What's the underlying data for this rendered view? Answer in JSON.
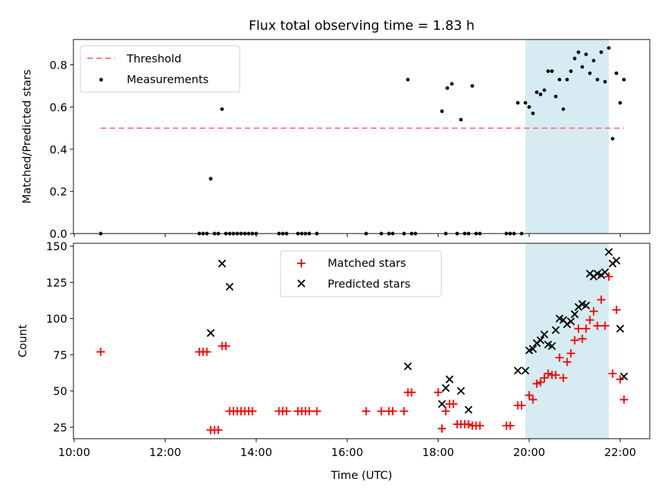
{
  "chart_data": [
    {
      "type": "scatter",
      "title": "Flux total observing time = 1.83 h",
      "xlabel": "",
      "ylabel": "Matched/Predicted stars",
      "xlim": [
        "09:59",
        "22:39"
      ],
      "ylim": [
        0,
        0.92
      ],
      "yticks": [
        "0.0",
        "0.2",
        "0.4",
        "0.6",
        "0.8"
      ],
      "legend_position": "top-left",
      "highlight_span": [
        "19:55",
        "21:45"
      ],
      "highlight_color": "#add8e6",
      "threshold": {
        "name": "Threshold",
        "y": 0.5,
        "x_range": [
          "10:35",
          "22:05"
        ],
        "color": "#ff7b7b",
        "style": "dashed"
      },
      "series": [
        {
          "name": "Measurements",
          "marker": "dot",
          "color": "#000000",
          "points": [
            [
              "10:35",
              0.0
            ],
            [
              "12:45",
              0.0
            ],
            [
              "12:50",
              0.0
            ],
            [
              "12:55",
              0.0
            ],
            [
              "13:00",
              0.26
            ],
            [
              "13:05",
              0.0
            ],
            [
              "13:10",
              0.0
            ],
            [
              "13:15",
              0.59
            ],
            [
              "13:20",
              0.0
            ],
            [
              "13:25",
              0.0
            ],
            [
              "13:30",
              0.0
            ],
            [
              "13:35",
              0.0
            ],
            [
              "13:40",
              0.0
            ],
            [
              "13:45",
              0.0
            ],
            [
              "13:50",
              0.0
            ],
            [
              "13:55",
              0.0
            ],
            [
              "14:00",
              0.0
            ],
            [
              "14:30",
              0.0
            ],
            [
              "14:35",
              0.0
            ],
            [
              "14:40",
              0.0
            ],
            [
              "14:55",
              0.0
            ],
            [
              "15:00",
              0.0
            ],
            [
              "15:05",
              0.0
            ],
            [
              "15:10",
              0.0
            ],
            [
              "15:20",
              0.0
            ],
            [
              "16:25",
              0.0
            ],
            [
              "16:45",
              0.0
            ],
            [
              "16:55",
              0.0
            ],
            [
              "17:00",
              0.0
            ],
            [
              "17:15",
              0.0
            ],
            [
              "17:20",
              0.73
            ],
            [
              "17:25",
              0.0
            ],
            [
              "17:30",
              0.0
            ],
            [
              "18:05",
              0.58
            ],
            [
              "18:10",
              0.0
            ],
            [
              "18:12",
              0.69
            ],
            [
              "18:18",
              0.71
            ],
            [
              "18:25",
              0.0
            ],
            [
              "18:30",
              0.54
            ],
            [
              "18:35",
              0.0
            ],
            [
              "18:40",
              0.0
            ],
            [
              "18:45",
              0.7
            ],
            [
              "18:50",
              0.0
            ],
            [
              "18:55",
              0.0
            ],
            [
              "19:30",
              0.0
            ],
            [
              "19:35",
              0.0
            ],
            [
              "19:40",
              0.0
            ],
            [
              "19:45",
              0.62
            ],
            [
              "19:50",
              0.0
            ],
            [
              "19:55",
              0.62
            ],
            [
              "20:00",
              0.6
            ],
            [
              "20:05",
              0.57
            ],
            [
              "20:10",
              0.67
            ],
            [
              "20:15",
              0.66
            ],
            [
              "20:20",
              0.68
            ],
            [
              "20:25",
              0.77
            ],
            [
              "20:30",
              0.77
            ],
            [
              "20:35",
              0.65
            ],
            [
              "20:40",
              0.73
            ],
            [
              "20:45",
              0.59
            ],
            [
              "20:50",
              0.73
            ],
            [
              "20:55",
              0.77
            ],
            [
              "21:00",
              0.83
            ],
            [
              "21:05",
              0.86
            ],
            [
              "21:10",
              0.79
            ],
            [
              "21:15",
              0.85
            ],
            [
              "21:20",
              0.76
            ],
            [
              "21:25",
              0.82
            ],
            [
              "21:30",
              0.73
            ],
            [
              "21:35",
              0.86
            ],
            [
              "21:40",
              0.72
            ],
            [
              "21:45",
              0.88
            ],
            [
              "21:50",
              0.45
            ],
            [
              "21:55",
              0.76
            ],
            [
              "22:00",
              0.62
            ],
            [
              "22:05",
              0.73
            ]
          ]
        }
      ]
    },
    {
      "type": "scatter",
      "title": "",
      "xlabel": "Time (UTC)",
      "ylabel": "Count",
      "xlim": [
        "09:59",
        "22:39"
      ],
      "ylim": [
        17,
        152
      ],
      "xticks": [
        "10:00",
        "12:00",
        "14:00",
        "16:00",
        "18:00",
        "20:00",
        "22:00"
      ],
      "yticks": [
        "25",
        "50",
        "75",
        "100",
        "125",
        "150"
      ],
      "legend_position": "upper-center",
      "highlight_span": [
        "19:55",
        "21:45"
      ],
      "highlight_color": "#add8e6",
      "series": [
        {
          "name": "Matched stars",
          "marker": "plus",
          "color": "#ff0000",
          "points": [
            [
              "10:35",
              77
            ],
            [
              "12:45",
              77
            ],
            [
              "12:50",
              77
            ],
            [
              "12:55",
              77
            ],
            [
              "13:00",
              23
            ],
            [
              "13:05",
              23
            ],
            [
              "13:10",
              23
            ],
            [
              "13:15",
              81
            ],
            [
              "13:20",
              81
            ],
            [
              "13:25",
              36
            ],
            [
              "13:30",
              36
            ],
            [
              "13:35",
              36
            ],
            [
              "13:40",
              36
            ],
            [
              "13:45",
              36
            ],
            [
              "13:50",
              36
            ],
            [
              "13:55",
              36
            ],
            [
              "14:30",
              36
            ],
            [
              "14:35",
              36
            ],
            [
              "14:40",
              36
            ],
            [
              "14:55",
              36
            ],
            [
              "15:00",
              36
            ],
            [
              "15:05",
              36
            ],
            [
              "15:10",
              36
            ],
            [
              "15:20",
              36
            ],
            [
              "16:25",
              36
            ],
            [
              "16:45",
              36
            ],
            [
              "16:55",
              36
            ],
            [
              "17:00",
              36
            ],
            [
              "17:15",
              36
            ],
            [
              "17:20",
              49
            ],
            [
              "17:25",
              49
            ],
            [
              "18:00",
              49
            ],
            [
              "18:05",
              24
            ],
            [
              "18:10",
              36
            ],
            [
              "18:15",
              41
            ],
            [
              "18:20",
              41
            ],
            [
              "18:25",
              27
            ],
            [
              "18:30",
              27
            ],
            [
              "18:35",
              27
            ],
            [
              "18:40",
              27
            ],
            [
              "18:45",
              26
            ],
            [
              "18:50",
              26
            ],
            [
              "18:55",
              26
            ],
            [
              "19:30",
              26
            ],
            [
              "19:35",
              26
            ],
            [
              "19:45",
              40
            ],
            [
              "19:50",
              40
            ],
            [
              "20:00",
              47
            ],
            [
              "20:05",
              44
            ],
            [
              "20:10",
              55
            ],
            [
              "20:15",
              56
            ],
            [
              "20:20",
              59
            ],
            [
              "20:25",
              62
            ],
            [
              "20:30",
              61
            ],
            [
              "20:35",
              61
            ],
            [
              "20:40",
              73
            ],
            [
              "20:45",
              59
            ],
            [
              "20:50",
              70
            ],
            [
              "20:55",
              76
            ],
            [
              "21:00",
              85
            ],
            [
              "21:05",
              93
            ],
            [
              "21:10",
              86
            ],
            [
              "21:15",
              93
            ],
            [
              "21:20",
              99
            ],
            [
              "21:25",
              105
            ],
            [
              "21:30",
              95
            ],
            [
              "21:35",
              113
            ],
            [
              "21:40",
              95
            ],
            [
              "21:45",
              129
            ],
            [
              "21:50",
              62
            ],
            [
              "21:55",
              106
            ],
            [
              "22:00",
              58
            ],
            [
              "22:05",
              44
            ]
          ]
        },
        {
          "name": "Predicted stars",
          "marker": "x",
          "color": "#000000",
          "points": [
            [
              "13:00",
              90
            ],
            [
              "13:15",
              138
            ],
            [
              "13:25",
              122
            ],
            [
              "17:20",
              67
            ],
            [
              "18:05",
              41
            ],
            [
              "18:10",
              52
            ],
            [
              "18:15",
              58
            ],
            [
              "18:30",
              50
            ],
            [
              "18:40",
              37
            ],
            [
              "19:45",
              64
            ],
            [
              "19:55",
              64
            ],
            [
              "20:00",
              78
            ],
            [
              "20:05",
              79
            ],
            [
              "20:10",
              83
            ],
            [
              "20:15",
              85
            ],
            [
              "20:20",
              89
            ],
            [
              "20:25",
              82
            ],
            [
              "20:30",
              81
            ],
            [
              "20:35",
              92
            ],
            [
              "20:40",
              100
            ],
            [
              "20:45",
              99
            ],
            [
              "20:50",
              96
            ],
            [
              "20:55",
              98
            ],
            [
              "21:00",
              103
            ],
            [
              "21:05",
              108
            ],
            [
              "21:10",
              110
            ],
            [
              "21:15",
              109
            ],
            [
              "21:20",
              131
            ],
            [
              "21:25",
              129
            ],
            [
              "21:30",
              131
            ],
            [
              "21:35",
              130
            ],
            [
              "21:40",
              132
            ],
            [
              "21:45",
              146
            ],
            [
              "21:50",
              138
            ],
            [
              "21:55",
              140
            ],
            [
              "22:00",
              93
            ],
            [
              "22:05",
              60
            ]
          ]
        }
      ]
    }
  ]
}
